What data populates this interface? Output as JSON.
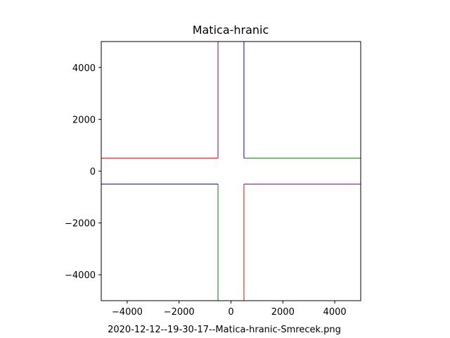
{
  "chart_data": {
    "type": "line",
    "title": "Matica-hranic",
    "xlabel": "2020-12-12--19-30-17--Matica-hranic-Smrecek.png",
    "ylabel": "",
    "xlim": [
      -5000,
      5000
    ],
    "ylim": [
      -5000,
      5000
    ],
    "grid": false,
    "x_ticks": [
      -4000,
      -2000,
      0,
      2000,
      4000
    ],
    "y_ticks": [
      -4000,
      -2000,
      0,
      2000,
      4000
    ],
    "series": [
      {
        "color": "#ff0000",
        "segments": [
          {
            "x": [
              -5000,
              -500
            ],
            "y": [
              500,
              500
            ]
          },
          {
            "x": [
              500,
              500
            ],
            "y": [
              -500,
              -5000
            ]
          }
        ]
      },
      {
        "color": "#008000",
        "segments": [
          {
            "x": [
              500,
              5000
            ],
            "y": [
              500,
              500
            ]
          },
          {
            "x": [
              -500,
              -500
            ],
            "y": [
              -500,
              -5000
            ]
          }
        ]
      },
      {
        "color": "#0000ff",
        "segments": [
          {
            "x": [
              -5000,
              -500
            ],
            "y": [
              -500,
              -500
            ]
          },
          {
            "x": [
              500,
              500
            ],
            "y": [
              500,
              5000
            ]
          }
        ]
      },
      {
        "color": "#800080",
        "segments": [
          {
            "x": [
              500,
              5000
            ],
            "y": [
              -500,
              -500
            ]
          },
          {
            "x": [
              -500,
              -500
            ],
            "y": [
              500,
              5000
            ]
          }
        ]
      }
    ]
  }
}
